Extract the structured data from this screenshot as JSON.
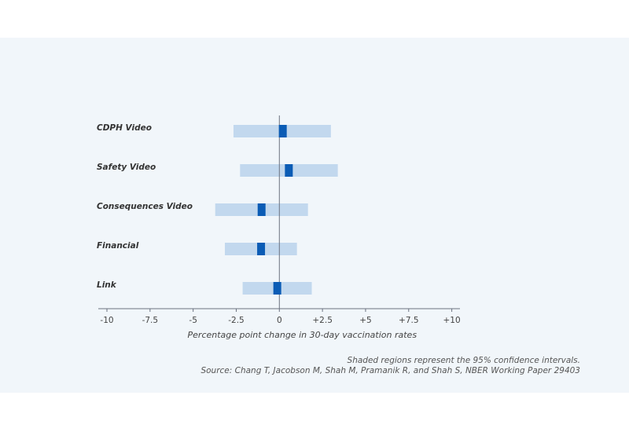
{
  "chart_data": {
    "type": "forest",
    "categories": [
      "CDPH Video",
      "Safety Video",
      "Consequences Video",
      "Financial",
      "Link"
    ],
    "estimates": [
      0.2,
      0.55,
      -1.03,
      -1.06,
      -0.12
    ],
    "ci_lower": [
      -2.66,
      -2.28,
      -3.72,
      -3.16,
      -2.13
    ],
    "ci_upper": [
      2.99,
      3.39,
      1.66,
      1.02,
      1.88
    ],
    "xlabel": "Percentage point change in 30-day vaccination rates",
    "xlim": [
      -10,
      10
    ],
    "xticks": [
      -10,
      -7.5,
      -5,
      -2.5,
      0,
      2.5,
      5,
      7.5,
      10
    ],
    "xtick_labels": [
      "-10",
      "-7.5",
      "-5",
      "-2.5",
      "0",
      "+2.5",
      "+5",
      "+7.5",
      "+10"
    ],
    "grid": false
  },
  "notes": {
    "ci_note": "Shaded regions represent the 95% confidence intervals.",
    "source": "Source: Chang T, Jacobson M, Shah M, Pramanik R, and Shah S, NBER Working Paper 29403"
  },
  "colors": {
    "ci": "#c2d8ee",
    "estimate": "#0b5cb5",
    "axis": "#6b7280",
    "panel": "#f1f6fa"
  }
}
